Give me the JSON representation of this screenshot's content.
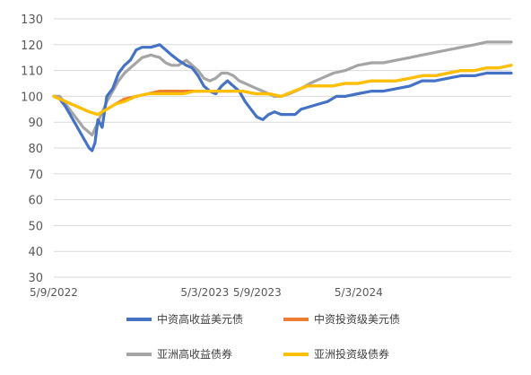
{
  "chart_data": {
    "type": "line",
    "title": "",
    "xlabel": "",
    "ylabel": "",
    "x_tick_labels": [
      "5/9/2022",
      "5/3/2023",
      "5/9/2023",
      "5/3/2024"
    ],
    "y_ticks": [
      30,
      40,
      50,
      60,
      70,
      80,
      90,
      100,
      110,
      120,
      130
    ],
    "ylim": [
      30,
      130
    ],
    "xlim": [
      "2022-05-09",
      "2025-05-01"
    ],
    "grid": "horizontal",
    "legend_position": "bottom",
    "series": [
      {
        "name": "中资高收益美元债",
        "color": "#4472C4",
        "points": [
          [
            "2022-05-09",
            100
          ],
          [
            "2022-05-23",
            99
          ],
          [
            "2022-06-06",
            96
          ],
          [
            "2022-06-20",
            92
          ],
          [
            "2022-07-04",
            88
          ],
          [
            "2022-07-18",
            84
          ],
          [
            "2022-08-01",
            80
          ],
          [
            "2022-08-08",
            79
          ],
          [
            "2022-08-15",
            82
          ],
          [
            "2022-08-22",
            91
          ],
          [
            "2022-09-01",
            88
          ],
          [
            "2022-09-12",
            100
          ],
          [
            "2022-09-26",
            103
          ],
          [
            "2022-10-10",
            109
          ],
          [
            "2022-10-24",
            112
          ],
          [
            "2022-11-07",
            114
          ],
          [
            "2022-11-21",
            118
          ],
          [
            "2022-12-05",
            119
          ],
          [
            "2022-12-26",
            119
          ],
          [
            "2023-01-16",
            120
          ],
          [
            "2023-01-30",
            118
          ],
          [
            "2023-02-13",
            116
          ],
          [
            "2023-03-01",
            114
          ],
          [
            "2023-03-20",
            112
          ],
          [
            "2023-04-03",
            111
          ],
          [
            "2023-04-17",
            108
          ],
          [
            "2023-05-01",
            104
          ],
          [
            "2023-05-15",
            102
          ],
          [
            "2023-05-29",
            101
          ],
          [
            "2023-06-12",
            104
          ],
          [
            "2023-06-26",
            106
          ],
          [
            "2023-07-10",
            104
          ],
          [
            "2023-07-24",
            102
          ],
          [
            "2023-08-07",
            98
          ],
          [
            "2023-08-21",
            95
          ],
          [
            "2023-09-04",
            92
          ],
          [
            "2023-09-18",
            91
          ],
          [
            "2023-10-02",
            93
          ],
          [
            "2023-10-16",
            94
          ],
          [
            "2023-11-01",
            93
          ],
          [
            "2023-11-20",
            93
          ],
          [
            "2023-12-04",
            93
          ],
          [
            "2023-12-18",
            95
          ],
          [
            "2024-01-08",
            96
          ],
          [
            "2024-01-29",
            97
          ],
          [
            "2024-02-19",
            98
          ],
          [
            "2024-03-11",
            100
          ],
          [
            "2024-04-01",
            100
          ],
          [
            "2024-05-01",
            101
          ],
          [
            "2024-06-03",
            102
          ],
          [
            "2024-07-01",
            102
          ],
          [
            "2024-08-01",
            103
          ],
          [
            "2024-09-02",
            104
          ],
          [
            "2024-10-01",
            106
          ],
          [
            "2024-11-01",
            106
          ],
          [
            "2024-12-02",
            107
          ],
          [
            "2025-01-02",
            108
          ],
          [
            "2025-02-03",
            108
          ],
          [
            "2025-03-03",
            109
          ],
          [
            "2025-04-01",
            109
          ],
          [
            "2025-05-01",
            109
          ]
        ]
      },
      {
        "name": "中资投资级美元债",
        "color": "#ED7D31",
        "points": [
          [
            "2022-05-09",
            100
          ],
          [
            "2022-06-06",
            98
          ],
          [
            "2022-07-04",
            96
          ],
          [
            "2022-08-01",
            94
          ],
          [
            "2022-08-22",
            93
          ],
          [
            "2022-09-12",
            95
          ],
          [
            "2022-10-03",
            97
          ],
          [
            "2022-10-24",
            99
          ],
          [
            "2022-11-21",
            100
          ],
          [
            "2022-12-19",
            101
          ],
          [
            "2023-01-16",
            102
          ],
          [
            "2023-02-13",
            102
          ],
          [
            "2023-03-13",
            102
          ],
          [
            "2023-04-10",
            102
          ],
          [
            "2023-05-08",
            102
          ],
          [
            "2023-06-05",
            102
          ],
          [
            "2023-07-03",
            102
          ],
          [
            "2023-08-01",
            102
          ],
          [
            "2023-09-01",
            101
          ],
          [
            "2023-10-02",
            101
          ],
          [
            "2023-11-01",
            100
          ],
          [
            "2023-12-01",
            102
          ],
          [
            "2024-01-02",
            104
          ],
          [
            "2024-02-01",
            104
          ],
          [
            "2024-03-01",
            104
          ],
          [
            "2024-04-01",
            105
          ],
          [
            "2024-05-01",
            105
          ],
          [
            "2024-06-03",
            106
          ],
          [
            "2024-07-01",
            106
          ],
          [
            "2024-08-01",
            106
          ],
          [
            "2024-09-02",
            107
          ],
          [
            "2024-10-01",
            108
          ],
          [
            "2024-11-01",
            108
          ],
          [
            "2024-12-02",
            109
          ],
          [
            "2025-01-02",
            110
          ],
          [
            "2025-02-03",
            110
          ],
          [
            "2025-03-03",
            111
          ],
          [
            "2025-04-01",
            111
          ],
          [
            "2025-05-01",
            112
          ]
        ]
      },
      {
        "name": "亚洲高收益债券",
        "color": "#A5A5A5",
        "points": [
          [
            "2022-05-09",
            100
          ],
          [
            "2022-05-23",
            100
          ],
          [
            "2022-06-06",
            97
          ],
          [
            "2022-06-20",
            94
          ],
          [
            "2022-07-04",
            91
          ],
          [
            "2022-07-18",
            88
          ],
          [
            "2022-08-01",
            86
          ],
          [
            "2022-08-08",
            85
          ],
          [
            "2022-08-22",
            90
          ],
          [
            "2022-09-12",
            98
          ],
          [
            "2022-09-26",
            102
          ],
          [
            "2022-10-10",
            106
          ],
          [
            "2022-10-24",
            109
          ],
          [
            "2022-11-07",
            111
          ],
          [
            "2022-11-21",
            113
          ],
          [
            "2022-12-05",
            115
          ],
          [
            "2022-12-26",
            116
          ],
          [
            "2023-01-16",
            115
          ],
          [
            "2023-01-30",
            113
          ],
          [
            "2023-02-13",
            112
          ],
          [
            "2023-03-01",
            112
          ],
          [
            "2023-03-20",
            114
          ],
          [
            "2023-04-03",
            112
          ],
          [
            "2023-04-17",
            110
          ],
          [
            "2023-05-01",
            107
          ],
          [
            "2023-05-15",
            106
          ],
          [
            "2023-05-29",
            107
          ],
          [
            "2023-06-12",
            109
          ],
          [
            "2023-06-26",
            109
          ],
          [
            "2023-07-10",
            108
          ],
          [
            "2023-07-24",
            106
          ],
          [
            "2023-08-07",
            105
          ],
          [
            "2023-08-21",
            104
          ],
          [
            "2023-09-04",
            103
          ],
          [
            "2023-09-18",
            102
          ],
          [
            "2023-10-02",
            101
          ],
          [
            "2023-10-16",
            100
          ],
          [
            "2023-11-01",
            100
          ],
          [
            "2023-11-20",
            101
          ],
          [
            "2023-12-04",
            102
          ],
          [
            "2023-12-18",
            103
          ],
          [
            "2024-01-08",
            105
          ],
          [
            "2024-02-05",
            107
          ],
          [
            "2024-03-04",
            109
          ],
          [
            "2024-04-01",
            110
          ],
          [
            "2024-05-01",
            112
          ],
          [
            "2024-06-03",
            113
          ],
          [
            "2024-07-01",
            113
          ],
          [
            "2024-08-01",
            114
          ],
          [
            "2024-09-02",
            115
          ],
          [
            "2024-10-01",
            116
          ],
          [
            "2024-11-01",
            117
          ],
          [
            "2024-12-02",
            118
          ],
          [
            "2025-01-02",
            119
          ],
          [
            "2025-02-03",
            120
          ],
          [
            "2025-03-03",
            121
          ],
          [
            "2025-04-01",
            121
          ],
          [
            "2025-05-01",
            121
          ]
        ]
      },
      {
        "name": "亚洲投资级债券",
        "color": "#FFC000",
        "points": [
          [
            "2022-05-09",
            100
          ],
          [
            "2022-06-06",
            98
          ],
          [
            "2022-07-04",
            96
          ],
          [
            "2022-08-01",
            94
          ],
          [
            "2022-08-22",
            93
          ],
          [
            "2022-09-12",
            95
          ],
          [
            "2022-10-03",
            97
          ],
          [
            "2022-10-24",
            98
          ],
          [
            "2022-11-21",
            100
          ],
          [
            "2022-12-19",
            101
          ],
          [
            "2023-01-16",
            101
          ],
          [
            "2023-02-13",
            101
          ],
          [
            "2023-03-13",
            101
          ],
          [
            "2023-04-10",
            102
          ],
          [
            "2023-05-08",
            102
          ],
          [
            "2023-06-05",
            102
          ],
          [
            "2023-07-03",
            102
          ],
          [
            "2023-08-01",
            102
          ],
          [
            "2023-09-01",
            101
          ],
          [
            "2023-10-02",
            101
          ],
          [
            "2023-11-01",
            100
          ],
          [
            "2023-12-01",
            102
          ],
          [
            "2024-01-02",
            104
          ],
          [
            "2024-02-01",
            104
          ],
          [
            "2024-03-01",
            104
          ],
          [
            "2024-04-01",
            105
          ],
          [
            "2024-05-01",
            105
          ],
          [
            "2024-06-03",
            106
          ],
          [
            "2024-07-01",
            106
          ],
          [
            "2024-08-01",
            106
          ],
          [
            "2024-09-02",
            107
          ],
          [
            "2024-10-01",
            108
          ],
          [
            "2024-11-01",
            108
          ],
          [
            "2024-12-02",
            109
          ],
          [
            "2025-01-02",
            110
          ],
          [
            "2025-02-03",
            110
          ],
          [
            "2025-03-03",
            111
          ],
          [
            "2025-04-01",
            111
          ],
          [
            "2025-05-01",
            112
          ]
        ]
      }
    ]
  }
}
